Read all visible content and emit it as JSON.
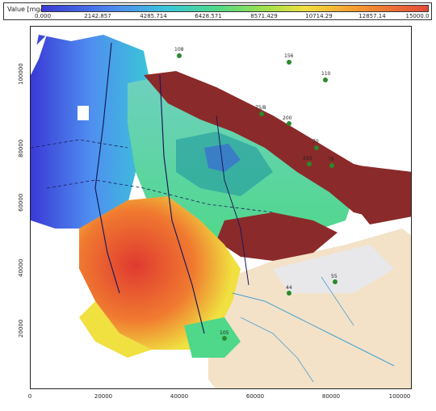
{
  "legend": {
    "title": "Value [mg/l]",
    "stops": [
      "0.000",
      "2142.857",
      "4285.714",
      "6428.571",
      "8571.429",
      "10714.29",
      "12857.14",
      "15000.0"
    ]
  },
  "axes": {
    "x_ticks": [
      "0",
      "20000",
      "40000",
      "60000",
      "80000",
      "100000"
    ],
    "y_ticks": [
      "100000",
      "80000",
      "60000",
      "40000",
      "20000"
    ]
  },
  "wells": [
    {
      "id": "well-108",
      "label": "108"
    },
    {
      "id": "well-156",
      "label": "156"
    },
    {
      "id": "well-110",
      "label": "110"
    },
    {
      "id": "well-75",
      "label": "75/8"
    },
    {
      "id": "well-200",
      "label": "200"
    },
    {
      "id": "well-70",
      "label": "70"
    },
    {
      "id": "well-293",
      "label": "293"
    },
    {
      "id": "well-78",
      "label": "78"
    },
    {
      "id": "well-44",
      "label": "44"
    },
    {
      "id": "well-55",
      "label": "55"
    },
    {
      "id": "well-105",
      "label": "105"
    }
  ],
  "colors": {
    "low": "#3a3ad6",
    "mid": "#4fd88a",
    "high": "#e44a3a",
    "very_high": "#8b2a2a",
    "land": "#f3e2c8"
  }
}
